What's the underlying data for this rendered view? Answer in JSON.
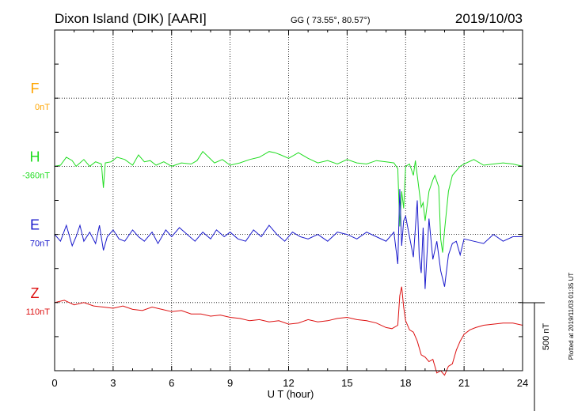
{
  "header": {
    "station": "Dixon Island (DIK)  [AARI]",
    "coords": "GG ( 73.55°,  80.57°)",
    "date": "2019/10/03"
  },
  "footer": {
    "plotted": "Plotted at 2019/11/03 01:35 UT"
  },
  "chart_data": {
    "type": "line",
    "xlabel": "U T (hour)",
    "xlim": [
      0,
      24
    ],
    "x_ticks": [
      0,
      3,
      6,
      9,
      12,
      15,
      18,
      21,
      24
    ],
    "x_tick_labels": [
      "0",
      "3",
      "6",
      "9",
      "12",
      "15",
      "18",
      "21",
      "24"
    ],
    "scale_bar": {
      "label": "500 nT",
      "value": 500
    },
    "y_span_nT": 1500,
    "grid": true,
    "series": [
      {
        "name": "F",
        "baseline_label": "0nT",
        "baseline": 0,
        "color": "#ffa500",
        "x": [],
        "y": []
      },
      {
        "name": "H",
        "baseline_label": "-360nT",
        "baseline": -360,
        "color": "#22dd22",
        "x": [
          0,
          0.3,
          0.6,
          0.9,
          1.1,
          1.3,
          1.5,
          1.8,
          2.1,
          2.4,
          2.5,
          2.6,
          2.9,
          3.2,
          3.6,
          4.0,
          4.3,
          4.6,
          4.9,
          5.2,
          5.6,
          6.0,
          6.5,
          7.0,
          7.3,
          7.6,
          7.9,
          8.2,
          8.6,
          9.0,
          9.5,
          10.0,
          10.5,
          11.0,
          11.3,
          11.6,
          12.0,
          12.5,
          13.0,
          13.5,
          14.0,
          14.5,
          15.0,
          15.5,
          16.0,
          16.5,
          17.0,
          17.4,
          17.6,
          17.7,
          17.8,
          17.9,
          18.0,
          18.2,
          18.4,
          18.5,
          18.7,
          18.8,
          18.9,
          19.0,
          19.2,
          19.4,
          19.5,
          19.7,
          19.8,
          19.9,
          20.0,
          20.2,
          20.4,
          20.6,
          20.8,
          21.0,
          21.5,
          22.0,
          22.5,
          23.0,
          23.5,
          24.0
        ],
        "y": [
          -360,
          -355,
          -320,
          -335,
          -360,
          -345,
          -330,
          -360,
          -340,
          -350,
          -455,
          -345,
          -340,
          -320,
          -330,
          -355,
          -310,
          -340,
          -335,
          -355,
          -340,
          -360,
          -345,
          -350,
          -335,
          -295,
          -320,
          -345,
          -330,
          -355,
          -345,
          -330,
          -320,
          -295,
          -300,
          -310,
          -325,
          -300,
          -325,
          -345,
          -335,
          -350,
          -330,
          -345,
          -350,
          -335,
          -340,
          -345,
          -370,
          -625,
          -470,
          -545,
          -360,
          -350,
          -400,
          -335,
          -470,
          -540,
          -520,
          -600,
          -470,
          -420,
          -400,
          -450,
          -680,
          -740,
          -640,
          -470,
          -400,
          -380,
          -360,
          -350,
          -330,
          -355,
          -350,
          -345,
          -350,
          -360
        ]
      },
      {
        "name": "E",
        "baseline_label": "70nT",
        "baseline": 70,
        "color": "#1a1acc",
        "x": [
          0,
          0.3,
          0.6,
          0.9,
          1.1,
          1.3,
          1.5,
          1.8,
          2.1,
          2.3,
          2.5,
          2.7,
          3.0,
          3.3,
          3.6,
          4.0,
          4.3,
          4.6,
          5.0,
          5.3,
          5.7,
          6.0,
          6.4,
          6.8,
          7.2,
          7.6,
          8.0,
          8.3,
          8.7,
          9.0,
          9.4,
          9.8,
          10.2,
          10.6,
          11.0,
          11.4,
          11.8,
          12.2,
          12.6,
          13.0,
          13.5,
          14.0,
          14.5,
          15.0,
          15.5,
          16.0,
          16.5,
          17.0,
          17.4,
          17.6,
          17.7,
          17.8,
          17.9,
          18.0,
          18.2,
          18.4,
          18.6,
          18.7,
          18.8,
          18.9,
          19.0,
          19.2,
          19.4,
          19.6,
          19.8,
          20.0,
          20.2,
          20.4,
          20.6,
          20.8,
          21.0,
          21.5,
          22.0,
          22.5,
          23.0,
          23.5,
          24.0
        ],
        "y": [
          70,
          40,
          110,
          20,
          60,
          110,
          40,
          80,
          30,
          110,
          0,
          60,
          90,
          50,
          40,
          90,
          60,
          40,
          80,
          30,
          90,
          60,
          100,
          70,
          40,
          80,
          50,
          90,
          60,
          80,
          50,
          40,
          90,
          60,
          110,
          70,
          40,
          80,
          60,
          50,
          70,
          40,
          80,
          70,
          50,
          80,
          60,
          40,
          80,
          -60,
          270,
          20,
          130,
          150,
          60,
          -30,
          220,
          -30,
          -100,
          100,
          -170,
          140,
          -40,
          40,
          -90,
          -160,
          -20,
          30,
          40,
          -20,
          50,
          40,
          30,
          70,
          40,
          60,
          60
        ]
      },
      {
        "name": "Z",
        "baseline_label": "110nT",
        "baseline": 110,
        "color": "#dd1111",
        "x": [
          0,
          0.5,
          1.0,
          1.5,
          2.0,
          2.5,
          3.0,
          3.5,
          4.0,
          4.5,
          5.0,
          5.5,
          6.0,
          6.5,
          7.0,
          7.5,
          8.0,
          8.5,
          9.0,
          9.5,
          10.0,
          10.5,
          11.0,
          11.5,
          12.0,
          12.5,
          13.0,
          13.5,
          14.0,
          14.5,
          15.0,
          15.5,
          16.0,
          16.5,
          17.0,
          17.3,
          17.6,
          17.7,
          17.8,
          17.9,
          18.0,
          18.2,
          18.4,
          18.6,
          18.8,
          19.0,
          19.2,
          19.4,
          19.6,
          19.8,
          20.0,
          20.2,
          20.4,
          20.6,
          20.8,
          21.0,
          21.3,
          21.6,
          22.0,
          22.5,
          23.0,
          23.5,
          24.0
        ],
        "y": [
          110,
          120,
          100,
          110,
          95,
          90,
          85,
          95,
          80,
          75,
          90,
          80,
          70,
          75,
          60,
          60,
          50,
          55,
          45,
          40,
          30,
          35,
          25,
          30,
          15,
          20,
          35,
          25,
          30,
          40,
          45,
          35,
          30,
          20,
          0,
          -5,
          10,
          140,
          180,
          90,
          30,
          -10,
          -20,
          -60,
          -120,
          -130,
          -150,
          -140,
          -200,
          -190,
          -210,
          -170,
          -160,
          -100,
          -60,
          -30,
          -10,
          0,
          10,
          15,
          20,
          20,
          10
        ]
      }
    ]
  }
}
